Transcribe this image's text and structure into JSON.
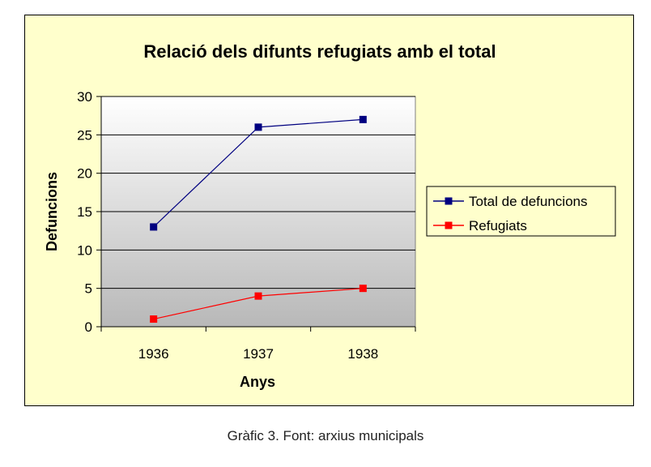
{
  "chart_data": {
    "type": "line",
    "title": "Relació dels difunts refugiats amb el total",
    "xlabel": "Anys",
    "ylabel": "Defuncions",
    "categories": [
      "1936",
      "1937",
      "1938"
    ],
    "ylim": [
      0,
      30
    ],
    "yticks": [
      0,
      5,
      10,
      15,
      20,
      25,
      30
    ],
    "grid": true,
    "legend_position": "right",
    "series": [
      {
        "name": "Total de defuncions",
        "values": [
          13,
          26,
          27
        ],
        "color": "#000080"
      },
      {
        "name": "Refugiats",
        "values": [
          1,
          4,
          5
        ],
        "color": "#ff0000"
      }
    ]
  },
  "caption": "Gràfic 3. Font: arxius municipals"
}
